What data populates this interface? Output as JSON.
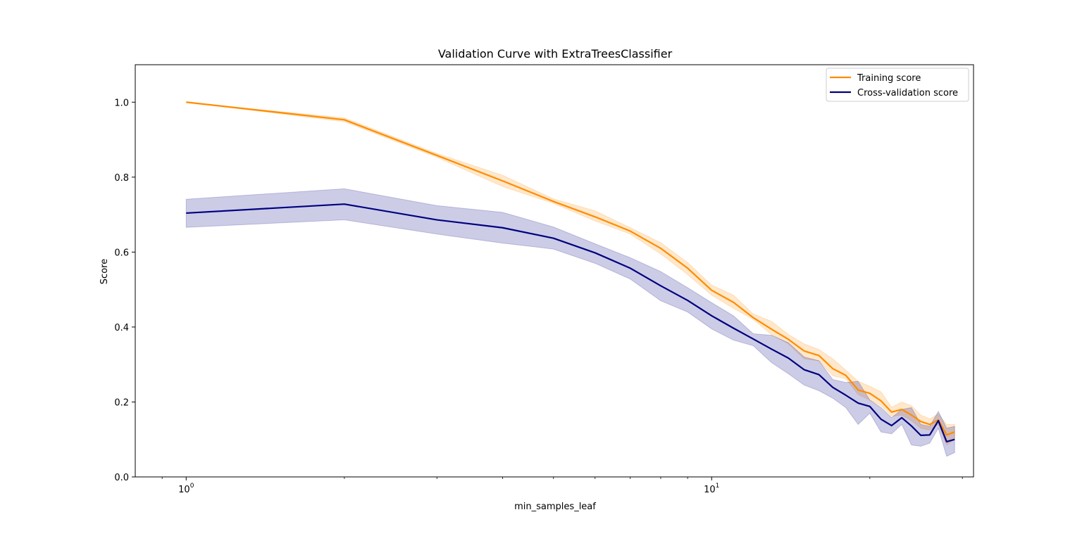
{
  "chart_data": {
    "type": "line",
    "title": "Validation Curve with ExtraTreesClassifier",
    "xlabel": "min_samples_leaf",
    "ylabel": "Score",
    "xscale": "log",
    "xlim": [
      0.8,
      31.5
    ],
    "ylim": [
      0.0,
      1.1
    ],
    "grid": false,
    "legend_position": "top-right",
    "x_tick_labels": [
      {
        "value": 1,
        "label": "10^0"
      },
      {
        "value": 10,
        "label": "10^1"
      }
    ],
    "y_tick_labels": [
      0.0,
      0.2,
      0.4,
      0.6,
      0.8,
      1.0
    ],
    "x": [
      1,
      2,
      3,
      4,
      5,
      6,
      7,
      8,
      9,
      10,
      11,
      12,
      13,
      14,
      15,
      16,
      17,
      18,
      19,
      20,
      21,
      22,
      23,
      24,
      25,
      26,
      27,
      28,
      29
    ],
    "series": [
      {
        "name": "Training score",
        "color": "#ff8c00",
        "mean": [
          1.0,
          0.953,
          0.858,
          0.79,
          0.735,
          0.694,
          0.656,
          0.61,
          0.557,
          0.498,
          0.466,
          0.425,
          0.394,
          0.367,
          0.336,
          0.324,
          0.289,
          0.271,
          0.232,
          0.223,
          0.203,
          0.173,
          0.18,
          0.165,
          0.148,
          0.14,
          0.152,
          0.112,
          0.12
        ],
        "lower": [
          1.0,
          0.948,
          0.853,
          0.775,
          0.73,
          0.683,
          0.648,
          0.595,
          0.54,
          0.485,
          0.45,
          0.42,
          0.38,
          0.355,
          0.315,
          0.31,
          0.27,
          0.262,
          0.22,
          0.205,
          0.19,
          0.162,
          0.165,
          0.15,
          0.13,
          0.125,
          0.14,
          0.085,
          0.1
        ],
        "upper": [
          1.0,
          0.958,
          0.863,
          0.805,
          0.742,
          0.71,
          0.665,
          0.625,
          0.572,
          0.512,
          0.485,
          0.435,
          0.415,
          0.38,
          0.355,
          0.34,
          0.315,
          0.285,
          0.255,
          0.242,
          0.227,
          0.186,
          0.2,
          0.19,
          0.165,
          0.155,
          0.168,
          0.14,
          0.14
        ]
      },
      {
        "name": "Cross-validation score",
        "color": "#000080",
        "mean": [
          0.704,
          0.728,
          0.686,
          0.665,
          0.637,
          0.598,
          0.557,
          0.51,
          0.471,
          0.43,
          0.397,
          0.368,
          0.341,
          0.317,
          0.286,
          0.273,
          0.239,
          0.218,
          0.197,
          0.188,
          0.154,
          0.137,
          0.158,
          0.136,
          0.111,
          0.112,
          0.15,
          0.094,
          0.1
        ],
        "lower": [
          0.666,
          0.686,
          0.648,
          0.624,
          0.608,
          0.57,
          0.528,
          0.47,
          0.44,
          0.395,
          0.365,
          0.35,
          0.305,
          0.275,
          0.245,
          0.23,
          0.21,
          0.185,
          0.14,
          0.17,
          0.12,
          0.115,
          0.14,
          0.085,
          0.082,
          0.09,
          0.13,
          0.055,
          0.065
        ],
        "upper": [
          0.741,
          0.769,
          0.724,
          0.706,
          0.667,
          0.622,
          0.585,
          0.548,
          0.505,
          0.465,
          0.43,
          0.382,
          0.378,
          0.358,
          0.32,
          0.31,
          0.26,
          0.252,
          0.255,
          0.205,
          0.185,
          0.158,
          0.18,
          0.185,
          0.14,
          0.135,
          0.175,
          0.13,
          0.135
        ]
      }
    ]
  }
}
